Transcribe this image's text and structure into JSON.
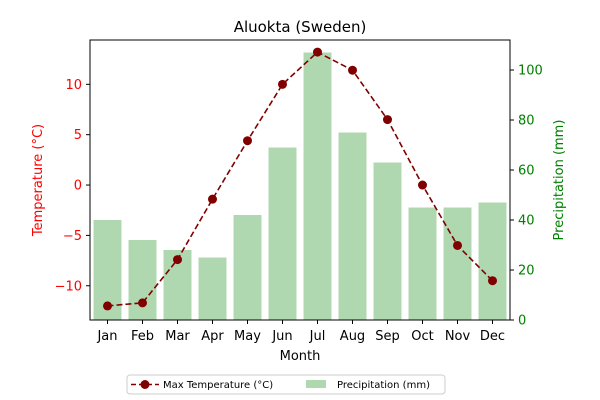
{
  "chart_data": {
    "type": "bar+line",
    "title": "Aluokta (Sweden)",
    "xlabel": "Month",
    "categories": [
      "Jan",
      "Feb",
      "Mar",
      "Apr",
      "May",
      "Jun",
      "Jul",
      "Aug",
      "Sep",
      "Oct",
      "Nov",
      "Dec"
    ],
    "left_axis": {
      "label": "Temperature (°C)",
      "color": "#ff0000",
      "ylim": [
        -13.4,
        14.4
      ],
      "ticks": [
        -10,
        -5,
        0,
        5,
        10
      ],
      "tick_labels": [
        "−10",
        "−5",
        "0",
        "5",
        "10"
      ]
    },
    "right_axis": {
      "label": "Precipitation (mm)",
      "color": "#008000",
      "ylim": [
        0,
        112
      ],
      "ticks": [
        0,
        20,
        40,
        60,
        80,
        100
      ],
      "tick_labels": [
        "0",
        "20",
        "40",
        "60",
        "80",
        "100"
      ]
    },
    "series": [
      {
        "name": "Max Temperature (°C)",
        "kind": "line",
        "axis": "left",
        "color": "#800000",
        "line_style": "dashed",
        "marker": "circle",
        "values": [
          -12.0,
          -11.7,
          -7.4,
          -1.4,
          4.4,
          10.0,
          13.2,
          11.4,
          6.5,
          0.0,
          -6.0,
          -9.5
        ]
      },
      {
        "name": "Precipitation (mm)",
        "kind": "bar",
        "axis": "right",
        "color": "#b0d8b0",
        "values": [
          40,
          32,
          28,
          25,
          42,
          69,
          107,
          75,
          63,
          45,
          45,
          47
        ]
      }
    ],
    "legend_position": "bottom-center",
    "grid": false
  }
}
